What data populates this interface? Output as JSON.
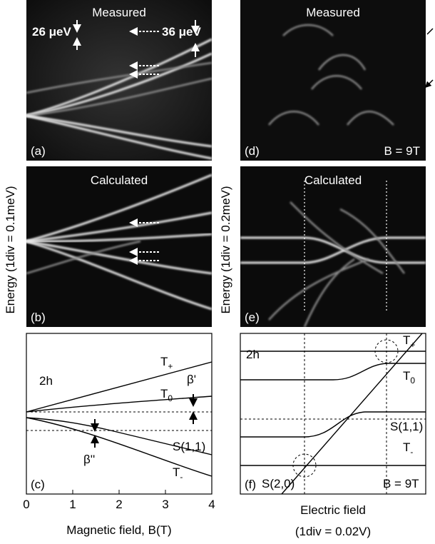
{
  "panels": {
    "a": {
      "title": "Measured",
      "label": "(a)",
      "annotations": [
        "26 μeV",
        "36 μeV"
      ]
    },
    "b": {
      "title": "Calculated",
      "label": "(b)"
    },
    "c": {
      "label": "(c)",
      "annotations": [
        "2h",
        "β'",
        "β''",
        "S(1,1)"
      ],
      "states": [
        {
          "main": "T",
          "sub": "+"
        },
        {
          "main": "T",
          "sub": "0"
        },
        {
          "main": "T",
          "sub": "-"
        }
      ],
      "xlim": [
        0,
        4
      ],
      "xticks": [
        0,
        1,
        2,
        3,
        4
      ],
      "xlabel": "Magnetic field, B(T)"
    },
    "d": {
      "title": "Measured",
      "label": "(d)",
      "field": "B = 9T"
    },
    "e": {
      "title": "Calculated",
      "label": "(e)"
    },
    "f": {
      "label": "(f)",
      "annotations": [
        "2h",
        "S(1,1)",
        "S(2,0)"
      ],
      "field": "B = 9T",
      "states": [
        {
          "main": "T",
          "sub": "+"
        },
        {
          "main": "T",
          "sub": "0"
        },
        {
          "main": "T",
          "sub": "-"
        }
      ],
      "xlabel": "Electric field",
      "xlabel2": "(1div = 0.02V)"
    }
  },
  "y_labels": [
    "Energy (1div = 0.1meV)",
    "Energy (1div = 0.2meV)"
  ]
}
